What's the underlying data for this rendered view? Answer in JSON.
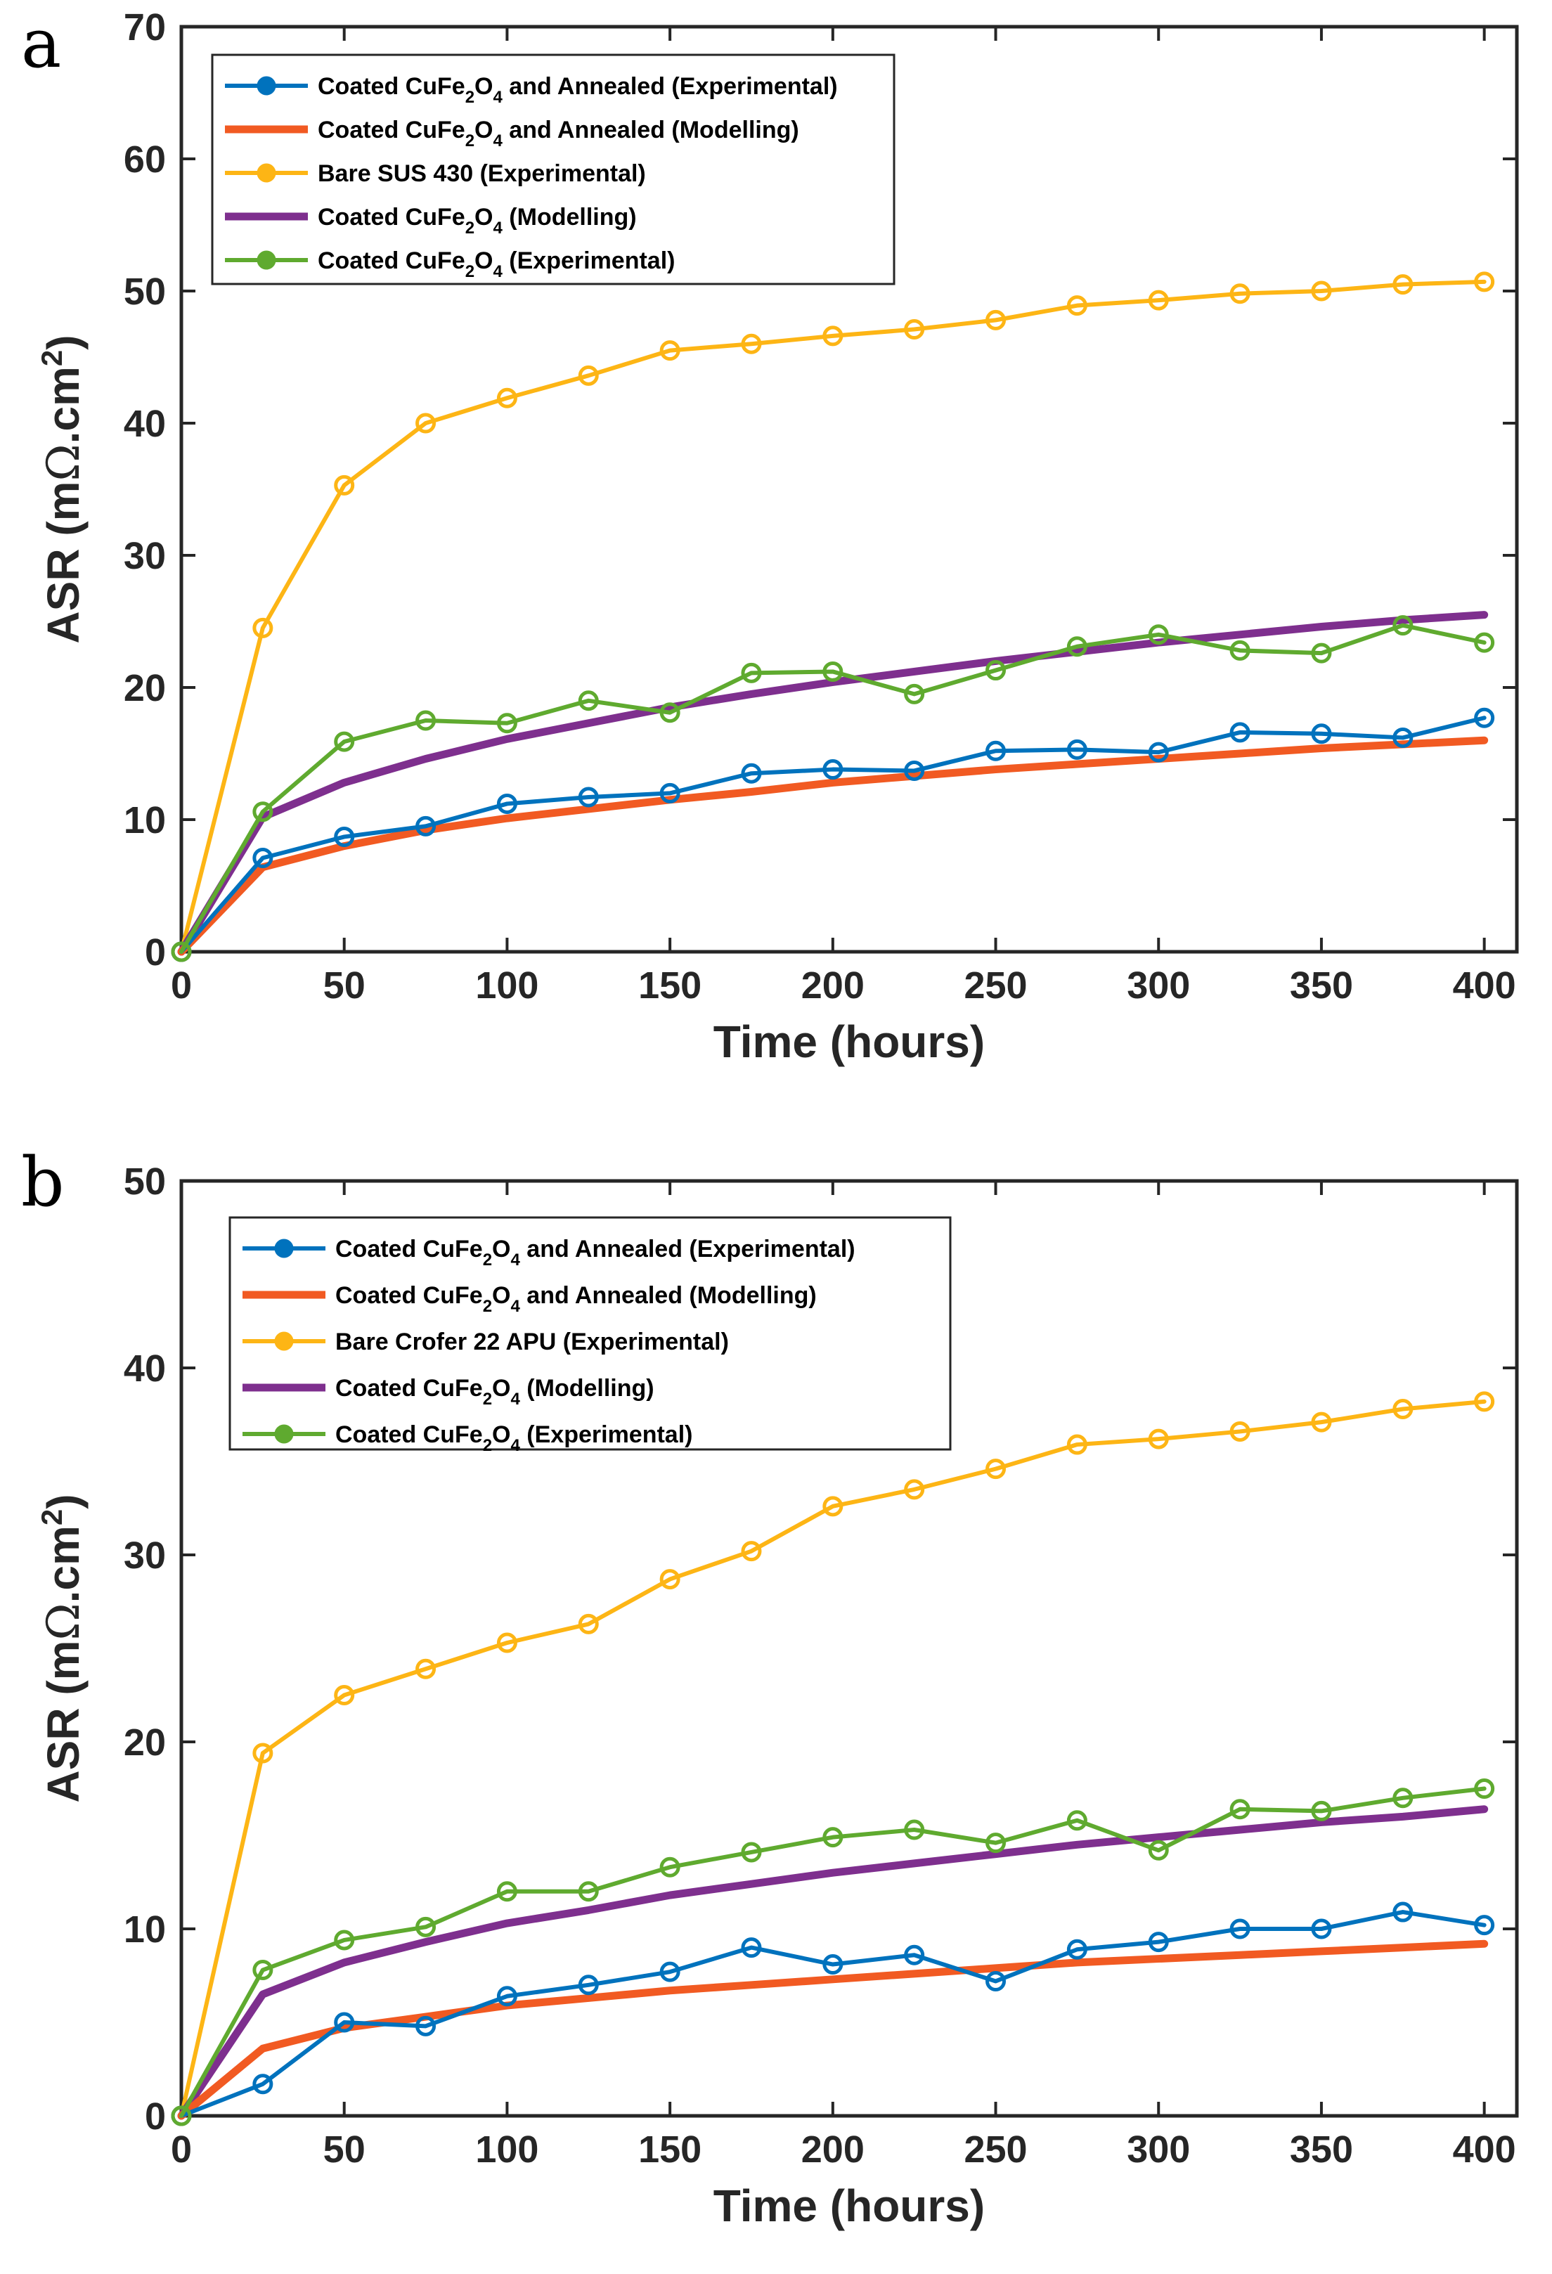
{
  "chart_data": [
    {
      "panel": "a",
      "type": "line",
      "xlabel": "Time (hours)",
      "ylabel_parts": [
        "ASR (m",
        "Ω",
        ".cm",
        "2",
        ")"
      ],
      "xlim": [
        0,
        410
      ],
      "ylim": [
        0,
        70
      ],
      "xticks": [
        0,
        50,
        100,
        150,
        200,
        250,
        300,
        350,
        400
      ],
      "yticks": [
        0,
        10,
        20,
        30,
        40,
        50,
        60,
        70
      ],
      "legend_location": "top-left",
      "x": [
        0,
        25,
        50,
        75,
        100,
        125,
        150,
        175,
        200,
        225,
        250,
        275,
        300,
        325,
        350,
        375,
        400
      ],
      "series": [
        {
          "id": "s1",
          "label_parts": [
            "Coated CuFe",
            "2",
            "O",
            "4",
            " and Annealed (Experimental)"
          ],
          "color": "#0072BD",
          "style": "marker",
          "values": [
            0,
            7.1,
            8.7,
            9.5,
            11.2,
            11.7,
            12.0,
            13.5,
            13.8,
            13.7,
            15.2,
            15.3,
            15.1,
            16.6,
            16.5,
            16.2,
            17.7
          ]
        },
        {
          "id": "s2",
          "label_parts": [
            "Coated CuFe",
            "2",
            "O",
            "4",
            " and Annealed (Modelling)"
          ],
          "color": "#F15A22",
          "style": "thick",
          "values": [
            0,
            6.4,
            8.0,
            9.2,
            10.1,
            10.8,
            11.5,
            12.1,
            12.8,
            13.3,
            13.8,
            14.2,
            14.6,
            15.0,
            15.4,
            15.7,
            16.0
          ]
        },
        {
          "id": "s3",
          "label_parts": [
            "Bare SUS 430 (Experimental)"
          ],
          "color": "#FDB515",
          "style": "marker",
          "values": [
            0,
            24.5,
            35.3,
            40.0,
            41.9,
            43.6,
            45.5,
            46.0,
            46.6,
            47.1,
            47.8,
            48.9,
            49.3,
            49.8,
            50.0,
            50.5,
            50.7
          ]
        },
        {
          "id": "s4",
          "label_parts": [
            "Coated CuFe",
            "2",
            "O",
            "4",
            " (Modelling)"
          ],
          "color": "#7E2F8E",
          "style": "thick",
          "values": [
            0,
            10.2,
            12.8,
            14.6,
            16.1,
            17.3,
            18.5,
            19.5,
            20.4,
            21.2,
            22.0,
            22.7,
            23.4,
            24.0,
            24.6,
            25.1,
            25.5
          ]
        },
        {
          "id": "s5",
          "label_parts": [
            "Coated CuFe",
            "2",
            "O",
            "4",
            " (Experimental)"
          ],
          "color": "#5FAA2F",
          "style": "marker",
          "values": [
            0,
            10.6,
            15.9,
            17.5,
            17.3,
            19.0,
            18.1,
            21.1,
            21.2,
            19.5,
            21.3,
            23.1,
            24.0,
            22.8,
            22.6,
            24.7,
            23.4
          ]
        }
      ]
    },
    {
      "panel": "b",
      "type": "line",
      "xlabel": "Time (hours)",
      "ylabel_parts": [
        "ASR (m",
        "Ω",
        ".cm",
        "2",
        ")"
      ],
      "xlim": [
        0,
        410
      ],
      "ylim": [
        0,
        50
      ],
      "xticks": [
        0,
        50,
        100,
        150,
        200,
        250,
        300,
        350,
        400
      ],
      "yticks": [
        0,
        10,
        20,
        30,
        40,
        50
      ],
      "legend_location": "top-left",
      "x": [
        0,
        25,
        50,
        75,
        100,
        125,
        150,
        175,
        200,
        225,
        250,
        275,
        300,
        325,
        350,
        375,
        400
      ],
      "series": [
        {
          "id": "s1",
          "label_parts": [
            "Coated CuFe",
            "2",
            "O",
            "4",
            " and Annealed (Experimental)"
          ],
          "color": "#0072BD",
          "style": "marker",
          "values": [
            0,
            1.7,
            5.0,
            4.8,
            6.4,
            7.0,
            7.7,
            9.0,
            8.1,
            8.6,
            7.2,
            8.9,
            9.3,
            10.0,
            10.0,
            10.9,
            10.2
          ]
        },
        {
          "id": "s2",
          "label_parts": [
            "Coated CuFe",
            "2",
            "O",
            "4",
            " and Annealed (Modelling)"
          ],
          "color": "#F15A22",
          "style": "thick",
          "values": [
            0,
            3.6,
            4.7,
            5.3,
            5.9,
            6.3,
            6.7,
            7.0,
            7.3,
            7.6,
            7.9,
            8.2,
            8.4,
            8.6,
            8.8,
            9.0,
            9.2
          ]
        },
        {
          "id": "s3",
          "label_parts": [
            "Bare Crofer 22 APU (Experimental)"
          ],
          "color": "#FDB515",
          "style": "marker",
          "values": [
            0,
            19.4,
            22.5,
            23.9,
            25.3,
            26.3,
            28.7,
            30.2,
            32.6,
            33.5,
            34.6,
            35.9,
            36.2,
            36.6,
            37.1,
            37.8,
            38.2
          ]
        },
        {
          "id": "s4",
          "label_parts": [
            "Coated CuFe",
            "2",
            "O",
            "4",
            " (Modelling)"
          ],
          "color": "#7E2F8E",
          "style": "thick",
          "values": [
            0,
            6.5,
            8.2,
            9.3,
            10.3,
            11.0,
            11.8,
            12.4,
            13.0,
            13.5,
            14.0,
            14.5,
            14.9,
            15.3,
            15.7,
            16.0,
            16.4
          ]
        },
        {
          "id": "s5",
          "label_parts": [
            "Coated CuFe",
            "2",
            "O",
            "4",
            " (Experimental)"
          ],
          "color": "#5FAA2F",
          "style": "marker",
          "values": [
            0,
            7.8,
            9.4,
            10.1,
            12.0,
            12.0,
            13.3,
            14.1,
            14.9,
            15.3,
            14.6,
            15.8,
            14.2,
            16.4,
            16.3,
            17.0,
            17.5
          ]
        }
      ]
    }
  ]
}
